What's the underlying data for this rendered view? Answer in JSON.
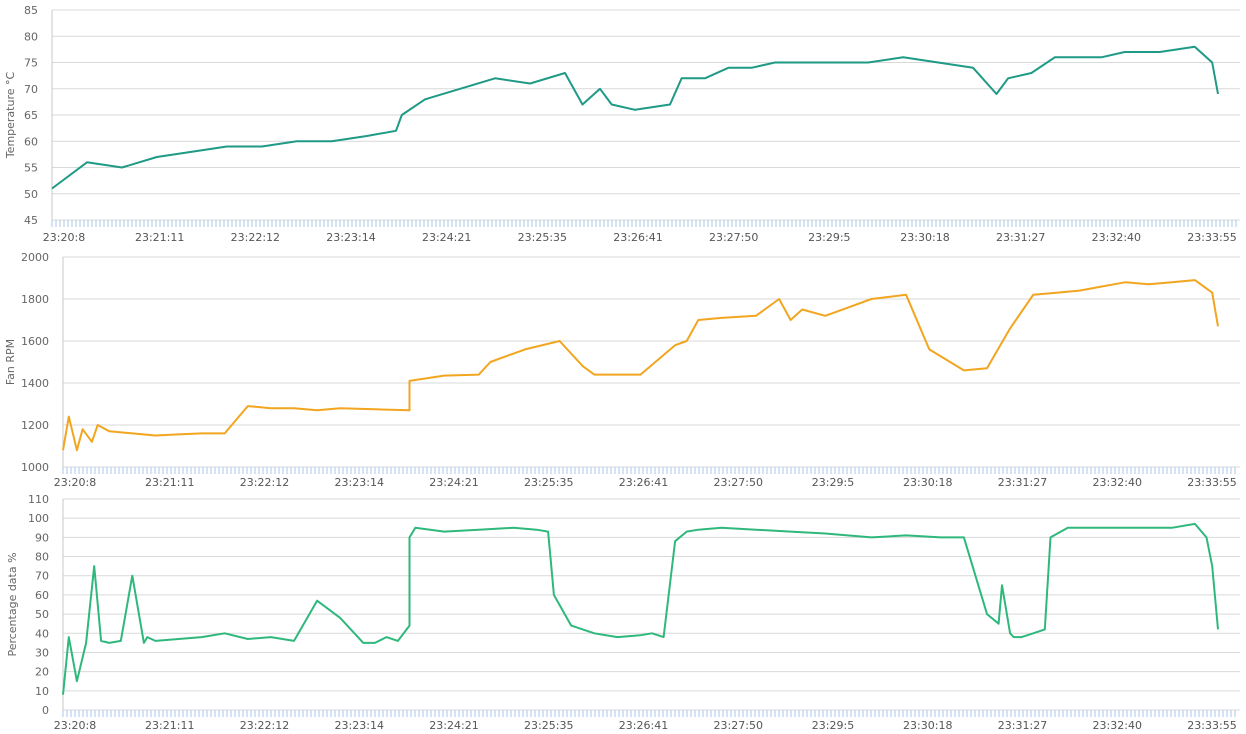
{
  "colors": {
    "temperature": "#1e9a86",
    "fan": "#f2a51f",
    "percentage": "#2fb87c",
    "grid": "#d9d9d9"
  },
  "x_tick_labels": [
    "23:20:8",
    "23:21:11",
    "23:22:12",
    "23:23:14",
    "23:24:21",
    "23:25:35",
    "23:26:41",
    "23:27:50",
    "23:29:5",
    "23:30:18",
    "23:31:27",
    "23:32:40",
    "23:33:55"
  ],
  "chart_data": [
    {
      "type": "line",
      "ylabel": "Temperature °C",
      "ylim": [
        45,
        85
      ],
      "yticks": [
        "45",
        "50",
        "55",
        "60",
        "65",
        "70",
        "75",
        "80",
        "85"
      ],
      "grid": true,
      "x_range": [
        0,
        1
      ],
      "x": [
        0.0,
        0.03,
        0.06,
        0.09,
        0.12,
        0.15,
        0.18,
        0.21,
        0.24,
        0.27,
        0.295,
        0.3,
        0.32,
        0.35,
        0.38,
        0.41,
        0.44,
        0.455,
        0.47,
        0.48,
        0.5,
        0.53,
        0.54,
        0.56,
        0.58,
        0.6,
        0.62,
        0.65,
        0.67,
        0.7,
        0.73,
        0.76,
        0.79,
        0.81,
        0.82,
        0.84,
        0.86,
        0.88,
        0.9,
        0.92,
        0.95,
        0.98,
        0.995,
        1.0
      ],
      "series": [
        {
          "values": [
            51,
            56,
            55,
            57,
            58,
            59,
            59,
            60,
            60,
            61,
            62,
            65,
            68,
            70,
            72,
            71,
            73,
            67,
            70,
            67,
            66,
            67,
            72,
            72,
            74,
            74,
            75,
            75,
            75,
            75,
            76,
            75,
            74,
            69,
            72,
            73,
            76,
            76,
            76,
            77,
            77,
            78,
            75,
            69
          ]
        }
      ]
    },
    {
      "type": "line",
      "ylabel": "Fan RPM",
      "ylim": [
        1000,
        2000
      ],
      "yticks": [
        "1000",
        "1200",
        "1400",
        "1600",
        "1800",
        "2000"
      ],
      "grid": true,
      "x_range": [
        0,
        1
      ],
      "x": [
        0.0,
        0.005,
        0.012,
        0.017,
        0.025,
        0.03,
        0.04,
        0.06,
        0.08,
        0.1,
        0.12,
        0.14,
        0.16,
        0.18,
        0.2,
        0.22,
        0.24,
        0.27,
        0.3,
        0.3,
        0.33,
        0.36,
        0.37,
        0.4,
        0.43,
        0.45,
        0.46,
        0.47,
        0.5,
        0.53,
        0.54,
        0.55,
        0.57,
        0.6,
        0.62,
        0.63,
        0.64,
        0.66,
        0.68,
        0.7,
        0.73,
        0.75,
        0.78,
        0.8,
        0.82,
        0.84,
        0.86,
        0.88,
        0.9,
        0.91,
        0.92,
        0.94,
        0.96,
        0.98,
        0.995,
        1.0
      ],
      "series": [
        {
          "values": [
            1080,
            1240,
            1080,
            1180,
            1120,
            1200,
            1170,
            1160,
            1150,
            1155,
            1160,
            1160,
            1290,
            1280,
            1280,
            1270,
            1280,
            1275,
            1270,
            1410,
            1435,
            1440,
            1500,
            1560,
            1600,
            1480,
            1440,
            1440,
            1440,
            1580,
            1600,
            1700,
            1710,
            1720,
            1800,
            1700,
            1750,
            1720,
            1760,
            1800,
            1820,
            1560,
            1460,
            1470,
            1660,
            1820,
            1830,
            1840,
            1860,
            1870,
            1880,
            1870,
            1880,
            1890,
            1830,
            1670
          ]
        }
      ]
    },
    {
      "type": "line",
      "ylabel": "Percentage data %",
      "ylim": [
        0,
        110
      ],
      "yticks": [
        "0",
        "10",
        "20",
        "30",
        "40",
        "50",
        "60",
        "70",
        "80",
        "90",
        "100",
        "110"
      ],
      "grid": true,
      "x_range": [
        0,
        1
      ],
      "x": [
        0.0,
        0.005,
        0.012,
        0.02,
        0.027,
        0.033,
        0.04,
        0.05,
        0.06,
        0.07,
        0.073,
        0.08,
        0.1,
        0.12,
        0.14,
        0.16,
        0.18,
        0.2,
        0.22,
        0.24,
        0.26,
        0.27,
        0.28,
        0.29,
        0.3,
        0.3,
        0.305,
        0.33,
        0.36,
        0.39,
        0.41,
        0.42,
        0.425,
        0.44,
        0.46,
        0.48,
        0.5,
        0.51,
        0.52,
        0.53,
        0.54,
        0.55,
        0.57,
        0.6,
        0.63,
        0.66,
        0.7,
        0.73,
        0.76,
        0.78,
        0.8,
        0.81,
        0.813,
        0.82,
        0.823,
        0.83,
        0.84,
        0.85,
        0.855,
        0.87,
        0.9,
        0.93,
        0.96,
        0.98,
        0.99,
        0.995,
        1.0
      ],
      "series": [
        {
          "values": [
            8,
            38,
            15,
            35,
            75,
            36,
            35,
            36,
            70,
            35,
            38,
            36,
            37,
            38,
            40,
            37,
            38,
            36,
            57,
            48,
            35,
            35,
            38,
            36,
            44,
            90,
            95,
            93,
            94,
            95,
            94,
            93,
            60,
            44,
            40,
            38,
            39,
            40,
            38,
            88,
            93,
            94,
            95,
            94,
            93,
            92,
            90,
            91,
            90,
            90,
            50,
            45,
            65,
            40,
            38,
            38,
            40,
            42,
            90,
            95,
            95,
            95,
            95,
            97,
            90,
            75,
            42
          ]
        }
      ]
    }
  ]
}
